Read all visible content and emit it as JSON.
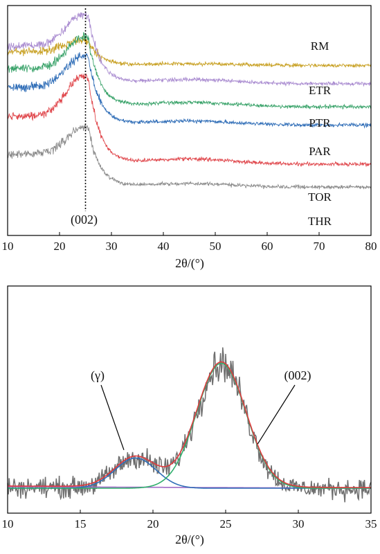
{
  "chart_data": [
    {
      "type": "line",
      "title": "",
      "xlabel": "2θ/(°)",
      "ylabel": "",
      "xlim": [
        10,
        80
      ],
      "xticks": [
        10,
        20,
        30,
        40,
        50,
        60,
        70,
        80
      ],
      "grid": false,
      "series": [
        {
          "name": "RM",
          "color": "#c9a227",
          "baseline": 0.26,
          "peak_height": 0.11
        },
        {
          "name": "ETR",
          "color": "#a98bd0",
          "baseline": 0.34,
          "peak_height": 0.3
        },
        {
          "name": "PTR",
          "color": "#3aa36a",
          "baseline": 0.44,
          "peak_height": 0.3
        },
        {
          "name": "PAR",
          "color": "#2f6db7",
          "baseline": 0.52,
          "peak_height": 0.3
        },
        {
          "name": "TOR",
          "color": "#e0484d",
          "baseline": 0.69,
          "peak_height": 0.38
        },
        {
          "name": "THR",
          "color": "#8a8a8a",
          "baseline": 0.79,
          "peak_height": 0.26
        }
      ],
      "peak_marker": {
        "x": 25,
        "label": "(002)"
      }
    },
    {
      "type": "line",
      "title": "",
      "xlabel": "2θ/(°)",
      "ylabel": "",
      "xlim": [
        10,
        35
      ],
      "xticks": [
        10,
        15,
        20,
        25,
        30,
        35
      ],
      "grid": false,
      "series": [
        {
          "role": "raw",
          "color": "#6e6e6e"
        },
        {
          "role": "fit-total",
          "color": "#e03a3e"
        },
        {
          "role": "gamma-band",
          "color": "#2f6db7",
          "center": 18.8,
          "sigma": 2.0,
          "amplitude": 0.23
        },
        {
          "role": "002-band",
          "color": "#2eae6b",
          "center": 24.7,
          "sigma": 2.4,
          "amplitude": 0.95
        },
        {
          "role": "background",
          "color": "#a06bc7",
          "start": 0.1,
          "end": 0.0
        }
      ],
      "annotations": [
        {
          "label": "(γ)",
          "x": 18.0
        },
        {
          "label": "(002)",
          "x": 27.2
        }
      ]
    }
  ]
}
